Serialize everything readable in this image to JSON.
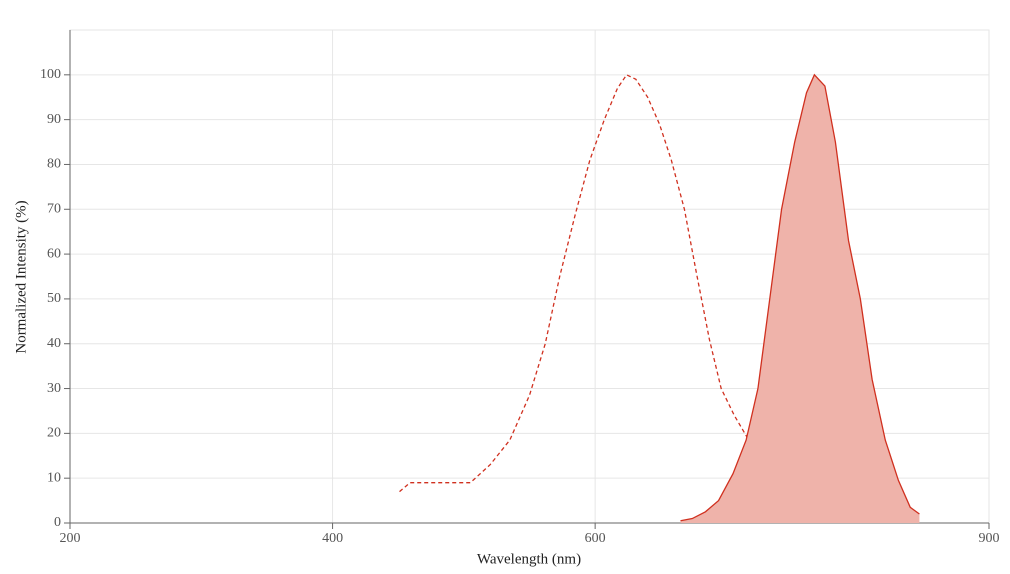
{
  "chart_data": {
    "type": "line",
    "x_label": "Wavelength (nm)",
    "y_label": "Normalized Intensity (%)",
    "xlim": [
      200,
      900
    ],
    "ylim": [
      0,
      110
    ],
    "xticks": [
      200,
      400,
      600,
      900
    ],
    "yticks": [
      0,
      10,
      20,
      30,
      40,
      50,
      60,
      70,
      80,
      90,
      100
    ],
    "grid": true,
    "series": [
      {
        "color": "#d0301f",
        "style": "dashed",
        "fill": false,
        "x": [
          451,
          459,
          505,
          520,
          535,
          550,
          562,
          573,
          585,
          596,
          607,
          617,
          624,
          631,
          640,
          649,
          658,
          668,
          677,
          687,
          696,
          706,
          716,
          727,
          741,
          756,
          770,
          785,
          796
        ],
        "values": [
          7,
          9,
          9,
          13,
          18.5,
          28.5,
          40,
          55,
          69,
          81,
          90,
          97,
          100,
          99,
          95,
          89,
          81,
          70,
          56,
          41,
          30,
          24,
          19,
          14,
          8.5,
          5,
          2.5,
          1,
          1
        ]
      },
      {
        "color": "#d0301f",
        "style": "solid",
        "fill": true,
        "fill_color": "#efb3aa",
        "x": [
          665,
          674,
          684,
          694,
          705,
          715,
          724,
          733,
          742,
          752,
          761,
          767,
          775,
          783,
          793,
          802,
          811,
          821,
          831,
          840,
          847
        ],
        "values": [
          0.5,
          1,
          2.5,
          5,
          11,
          18.5,
          30,
          50,
          70,
          85,
          96,
          100,
          97.5,
          85,
          63,
          50,
          32,
          18.5,
          9.5,
          3.5,
          2
        ]
      }
    ]
  }
}
